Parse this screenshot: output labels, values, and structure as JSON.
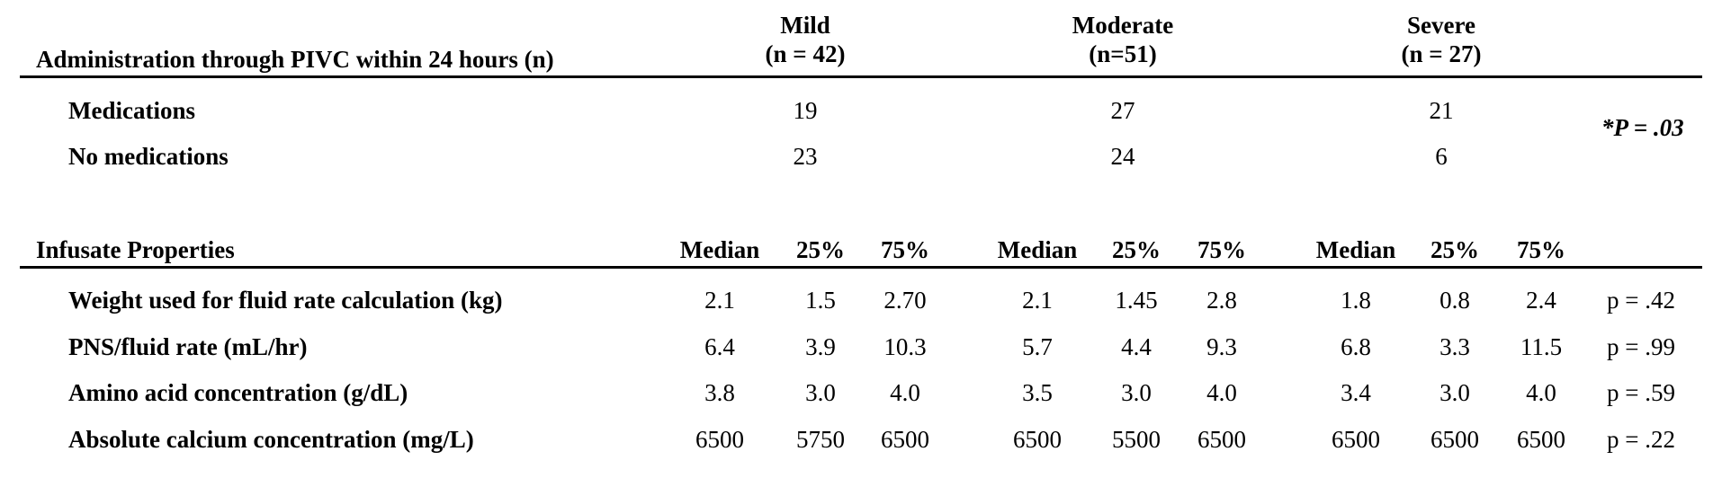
{
  "groups": [
    {
      "name": "Mild",
      "n": "(n = 42)"
    },
    {
      "name": "Moderate",
      "n": "(n=51)"
    },
    {
      "name": "Severe",
      "n": "(n = 27)"
    }
  ],
  "section1": {
    "title": "Administration through PIVC within 24 hours (n)",
    "rows": [
      {
        "label": "Medications",
        "values": [
          "19",
          "27",
          "21"
        ]
      },
      {
        "label": "No medications",
        "values": [
          "23",
          "24",
          "6"
        ]
      }
    ],
    "p_value": "*P = .03"
  },
  "section2": {
    "title": "Infusate Properties",
    "stat_headers": [
      "Median",
      "25%",
      "75%"
    ],
    "rows": [
      {
        "label": "Weight used for fluid rate calculation (kg)",
        "values": [
          "2.1",
          "1.5",
          "2.70",
          "2.1",
          "1.45",
          "2.8",
          "1.8",
          "0.8",
          "2.4"
        ],
        "p": "p = .42"
      },
      {
        "label": "PNS/fluid rate (mL/hr)",
        "values": [
          "6.4",
          "3.9",
          "10.3",
          "5.7",
          "4.4",
          "9.3",
          "6.8",
          "3.3",
          "11.5"
        ],
        "p": "p = .99"
      },
      {
        "label": "Amino acid concentration (g/dL)",
        "values": [
          "3.8",
          "3.0",
          "4.0",
          "3.5",
          "3.0",
          "4.0",
          "3.4",
          "3.0",
          "4.0"
        ],
        "p": "p = .59"
      },
      {
        "label": "Absolute calcium concentration (mg/L)",
        "values": [
          "6500",
          "5750",
          "6500",
          "6500",
          "5500",
          "6500",
          "6500",
          "6500",
          "6500"
        ],
        "p": "p = .22"
      }
    ]
  }
}
